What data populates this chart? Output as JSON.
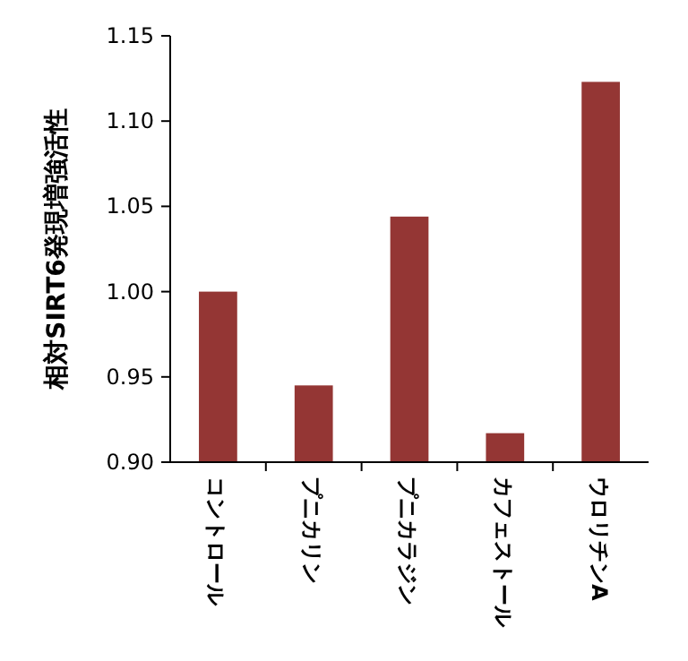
{
  "chart_data": {
    "type": "bar",
    "ylabel": "相対SIRT6発現増強活性",
    "categories": [
      "コントロール",
      "プニカリン",
      "プニカラジン",
      "カフェストール",
      "ウロリチンA"
    ],
    "values": [
      1.0,
      0.945,
      1.044,
      0.917,
      1.123
    ],
    "color": "#943634",
    "ylim": [
      0.9,
      1.15
    ],
    "yticks": [
      {
        "value": 0.9,
        "label": "0.90"
      },
      {
        "value": 0.95,
        "label": "0.95"
      },
      {
        "value": 1.0,
        "label": "1.00"
      },
      {
        "value": 1.05,
        "label": "1.05"
      },
      {
        "value": 1.1,
        "label": "1.10"
      },
      {
        "value": 1.15,
        "label": "1.15"
      }
    ]
  }
}
